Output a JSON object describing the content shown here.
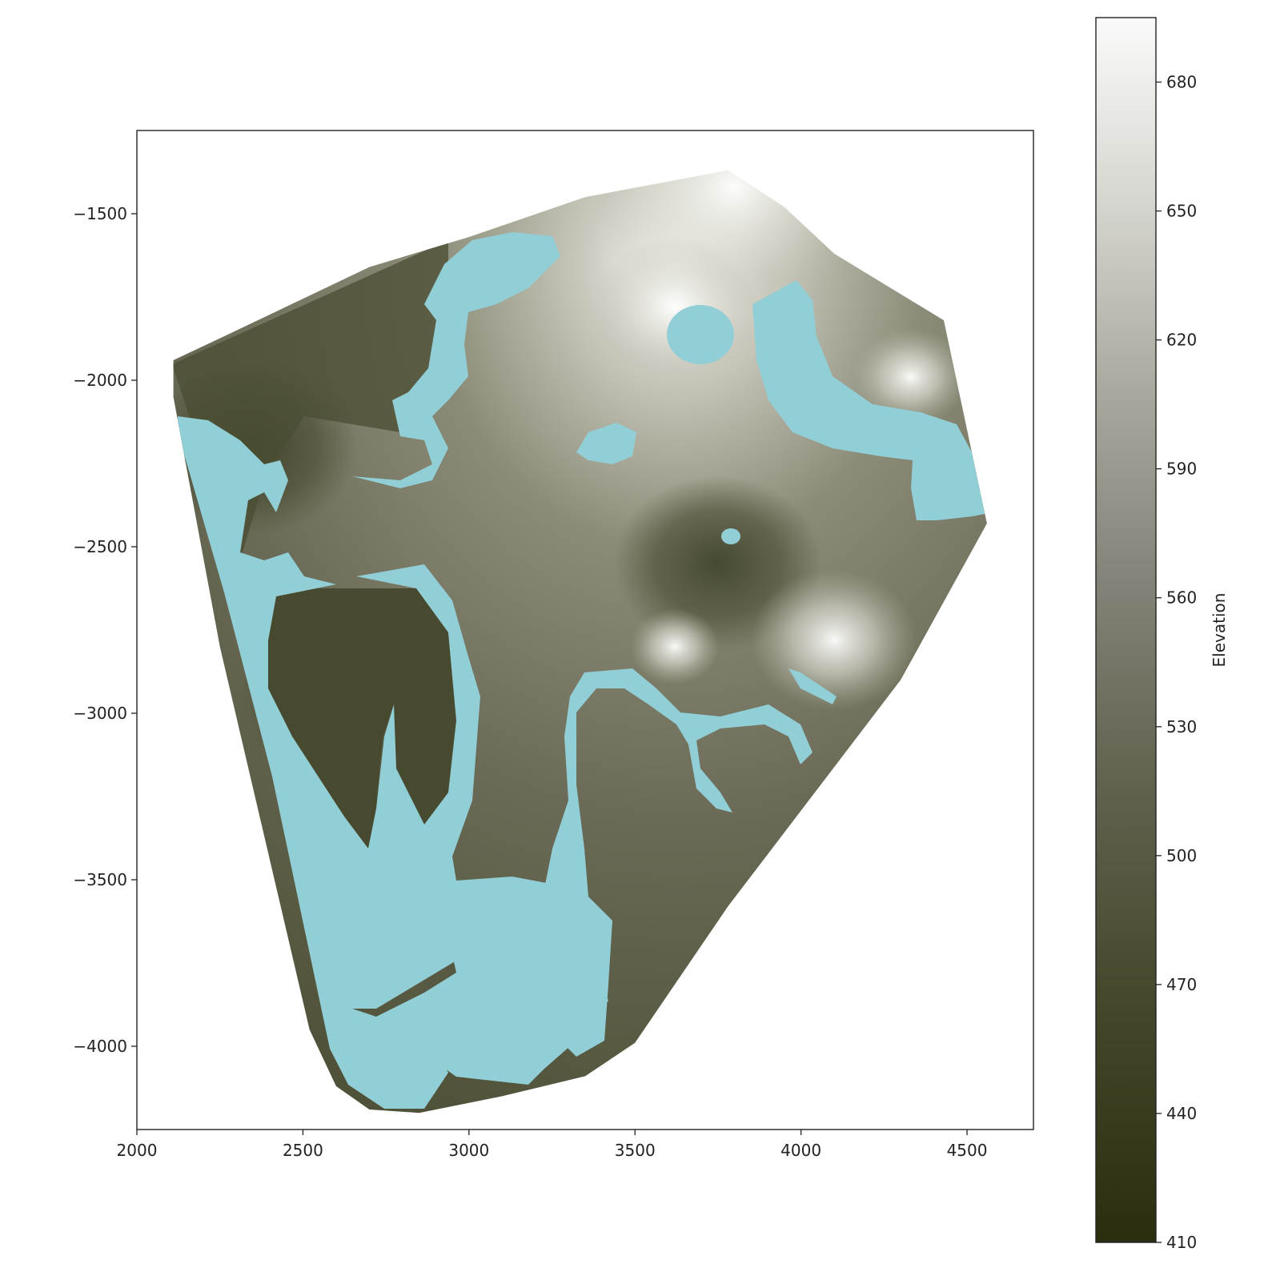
{
  "chart_data": {
    "type": "heatmap",
    "title": "",
    "xlabel": "",
    "ylabel": "",
    "xlim": [
      2000,
      4700
    ],
    "ylim": [
      -4250,
      -1250
    ],
    "x_ticks": [
      2000,
      2500,
      3000,
      3500,
      4000,
      4500
    ],
    "y_ticks": [
      -1500,
      -2000,
      -2500,
      -3000,
      -3500,
      -4000
    ],
    "colorbar": {
      "label": "Elevation",
      "range": [
        410,
        695
      ],
      "ticks": [
        410,
        440,
        470,
        500,
        530,
        560,
        590,
        620,
        650,
        680
      ],
      "color_low": "#2b2e0e",
      "color_mid": "#6c6c58",
      "color_high": "#fafafa"
    },
    "water_color": "#92ced6",
    "terrain_boundary": [
      [
        2110,
        -1940
      ],
      [
        2280,
        -1860
      ],
      [
        2700,
        -1660
      ],
      [
        3000,
        -1570
      ],
      [
        3350,
        -1450
      ],
      [
        3780,
        -1370
      ],
      [
        3950,
        -1480
      ],
      [
        4100,
        -1620
      ],
      [
        4430,
        -1820
      ],
      [
        4560,
        -2430
      ],
      [
        4300,
        -2900
      ],
      [
        3780,
        -3580
      ],
      [
        3500,
        -3990
      ],
      [
        3350,
        -4090
      ],
      [
        3100,
        -4150
      ],
      [
        2850,
        -4200
      ],
      [
        2700,
        -4190
      ],
      [
        2600,
        -4120
      ],
      [
        2520,
        -3950
      ],
      [
        2250,
        -2800
      ],
      [
        2110,
        -2050
      ]
    ],
    "highland_peaks": [
      {
        "x": 3800,
        "y": -1420,
        "elevation": 690
      },
      {
        "x": 3620,
        "y": -1780,
        "elevation": 640
      },
      {
        "x": 4100,
        "y": -2780,
        "elevation": 640
      },
      {
        "x": 3620,
        "y": -2800,
        "elevation": 610
      },
      {
        "x": 4330,
        "y": -1990,
        "elevation": 620
      }
    ],
    "lowland_basins": [
      {
        "x": 2620,
        "y": -2950,
        "elevation": 440
      },
      {
        "x": 2350,
        "y": -2200,
        "elevation": 455
      },
      {
        "x": 3750,
        "y": -2550,
        "elevation": 480
      }
    ]
  }
}
